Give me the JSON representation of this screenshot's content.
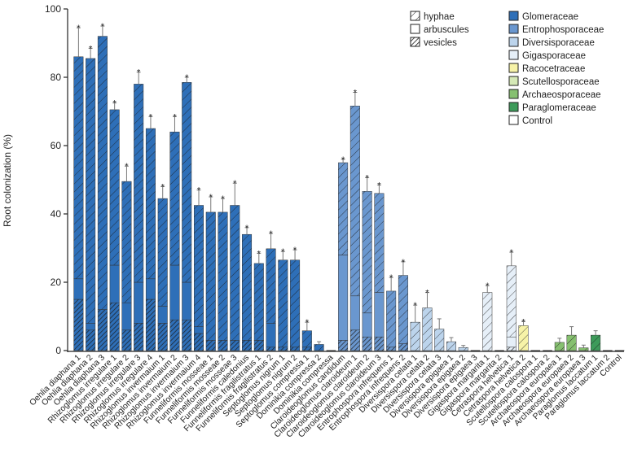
{
  "chart_data": {
    "type": "bar",
    "subtype": "stacked",
    "title": "",
    "xlabel": "",
    "ylabel": "Root colonization (%)",
    "ylim": [
      0,
      100
    ],
    "yticks": [
      0,
      20,
      40,
      60,
      80,
      100
    ],
    "grid": false,
    "significance_marker": "*",
    "stack_legend_title": "",
    "stack_components": [
      {
        "key": "vesicles",
        "label": "vesicles",
        "pattern": "dense-hatch"
      },
      {
        "key": "arbuscules",
        "label": "arbuscules",
        "pattern": "solid"
      },
      {
        "key": "hyphae",
        "label": "hyphae",
        "pattern": "sparse-hatch"
      }
    ],
    "families": [
      {
        "name": "Glomeraceae",
        "color": "#2e6fb8"
      },
      {
        "name": "Entrophosporaceae",
        "color": "#6a97cf"
      },
      {
        "name": "Diversisporaceae",
        "color": "#bcd4ec"
      },
      {
        "name": "Gigasporaceae",
        "color": "#e6eff8"
      },
      {
        "name": "Racocetraceae",
        "color": "#f7f3a8"
      },
      {
        "name": "Scutellosporaceae",
        "color": "#d5e9b6"
      },
      {
        "name": "Archaeosporaceae",
        "color": "#86c070"
      },
      {
        "name": "Paraglomeraceae",
        "color": "#3d9b5a"
      },
      {
        "name": "Control",
        "color": "#ffffff"
      }
    ],
    "categories": [
      "Oehlia diaphana 1",
      "Oehlia diaphana 2",
      "Oehlia diaphana 3",
      "Rhizoglomus irregulare 1",
      "Rhizoglomus irregulare 2",
      "Rhizoglomus irregulare 3",
      "Rhizoglomus irregulare 4",
      "Rhizoglomus invermaium 1",
      "Rhizoglomus invermaium 2",
      "Rhizoglomus invermaium 3",
      "Rhizoglomus invermaium 4",
      "Funneliformis mosseae 1",
      "Funneliformis mosseae 2",
      "Funneliformis mosseae 3",
      "Funneliformis caledonius",
      "Funneliformis fragilistratus 1",
      "Funneliformis fragilistratus 2",
      "Septoglomus nigrum 1",
      "Septoglomus nigrum 2",
      "Septoglomus compressa 1",
      "Dominikia compressa 2",
      "Dominikia compressa",
      "Claroideoglomus candidum",
      "Claroideoglomus claroideum 1",
      "Claroideoglomus claroideum 2",
      "Claroideoglomus claroideum 3",
      "Entrophospora infrequens 1",
      "Entrophospora infrequens 2",
      "Diversispora celata 1",
      "Diversispora celata 2",
      "Diversispora celata 3",
      "Diversispora epigaea 1",
      "Diversispora epigaea 2",
      "Diversispora epigaea 3",
      "Gigaspora margarita 1",
      "Gigaspora margarita 2",
      "Cetraspora helvetica 1",
      "Cetraspora helvetica 2",
      "Scutellospora calospora 1",
      "Scutellospora calospora 2",
      "Archaeospora europaea 1",
      "Archaeospora europaea 2",
      "Archaeospora europaea 3",
      "Paraglomus laccatum 1",
      "Paraglomus laccatum 2",
      "Control"
    ],
    "family_index": [
      0,
      0,
      0,
      0,
      0,
      0,
      0,
      0,
      0,
      0,
      0,
      0,
      0,
      0,
      0,
      0,
      0,
      0,
      0,
      0,
      0,
      0,
      1,
      1,
      1,
      1,
      1,
      1,
      2,
      2,
      2,
      2,
      2,
      2,
      3,
      3,
      3,
      4,
      5,
      5,
      6,
      6,
      6,
      7,
      7,
      8
    ],
    "series": [
      {
        "name": "vesicles",
        "values": [
          15,
          6,
          12,
          14,
          6,
          8,
          15,
          8,
          9,
          9,
          5,
          3,
          3,
          3,
          3,
          3,
          1,
          1,
          1,
          1,
          0,
          0,
          3,
          6,
          4,
          4,
          1,
          2,
          0,
          0,
          0,
          0,
          0,
          0,
          0,
          0,
          1,
          0,
          0,
          0,
          0,
          0,
          0,
          0,
          0,
          0
        ]
      },
      {
        "name": "arbuscules",
        "values": [
          6,
          2,
          0,
          11,
          8,
          12,
          6,
          5,
          16,
          11,
          2,
          0,
          0,
          0,
          0,
          0,
          7,
          0,
          0,
          0,
          0,
          0,
          25,
          10,
          7,
          13,
          0,
          0,
          0,
          0,
          0,
          0,
          0,
          0,
          0,
          0,
          3,
          0,
          0,
          0,
          0,
          0,
          0,
          0,
          0,
          0
        ]
      },
      {
        "name": "hyphae",
        "values": [
          65,
          77.5,
          80,
          45.5,
          35.5,
          58,
          44,
          31.5,
          39,
          58.5,
          35.5,
          37.5,
          37.5,
          39.5,
          31,
          22.5,
          21.8,
          25.5,
          25.5,
          4.8,
          1.8,
          0,
          27,
          55.6,
          35.6,
          29,
          16.4,
          20,
          8.3,
          12.5,
          6.3,
          2.6,
          0.9,
          0,
          17,
          0,
          20.8,
          7.3,
          0,
          0,
          2.4,
          4.5,
          0.8,
          4.5,
          0,
          0
        ]
      }
    ],
    "totals": [
      86,
      85.5,
      92,
      70.5,
      49.5,
      78,
      65,
      44.5,
      64,
      78.5,
      42.5,
      40.5,
      40.5,
      42.5,
      34,
      25.5,
      29.8,
      26.5,
      26.5,
      5.8,
      1.8,
      0,
      55,
      71.6,
      46.6,
      46,
      17.4,
      22,
      8.3,
      12.5,
      6.3,
      2.6,
      0.9,
      0,
      17,
      0,
      24.8,
      7.3,
      0,
      0,
      2.4,
      4.5,
      0.8,
      4.5,
      0,
      0
    ],
    "errors": [
      8.5,
      3,
      3,
      2,
      4.5,
      3.5,
      3.5,
      3.5,
      4.5,
      1.5,
      4.5,
      4.5,
      4,
      6.5,
      2,
      3,
      4.5,
      2.5,
      3,
      2.5,
      0.8,
      0,
      1,
      4,
      4,
      2.5,
      4,
      4,
      5,
      4.5,
      3,
      1.2,
      0.6,
      0,
      2,
      0,
      4,
      1.2,
      0,
      0,
      1.2,
      2.5,
      0.8,
      1.3,
      0,
      0
    ],
    "significant": [
      1,
      1,
      1,
      1,
      1,
      1,
      1,
      1,
      1,
      1,
      1,
      1,
      1,
      1,
      1,
      1,
      1,
      1,
      1,
      1,
      0,
      0,
      1,
      1,
      1,
      1,
      1,
      1,
      1,
      1,
      0,
      0,
      0,
      0,
      1,
      0,
      1,
      1,
      0,
      0,
      0,
      0,
      0,
      0,
      0,
      0
    ]
  }
}
